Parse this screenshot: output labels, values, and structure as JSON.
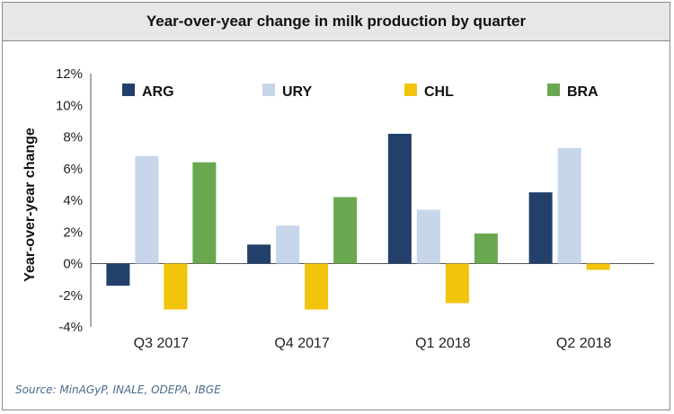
{
  "chart_data": {
    "type": "bar",
    "title": "Year-over-year change in milk production by quarter",
    "ylabel": "Year-over-year change",
    "xlabel": "",
    "categories": [
      "Q3 2017",
      "Q4 2017",
      "Q1 2018",
      "Q2 2018"
    ],
    "series": [
      {
        "name": "ARG",
        "color": "#23406b",
        "values": [
          -1.4,
          1.2,
          8.2,
          4.5
        ]
      },
      {
        "name": "URY",
        "color": "#c7d6ea",
        "values": [
          6.8,
          2.4,
          3.4,
          7.3
        ]
      },
      {
        "name": "CHL",
        "color": "#f2c40c",
        "values": [
          -2.9,
          -2.9,
          -2.5,
          -0.4
        ]
      },
      {
        "name": "BRA",
        "color": "#6aa84f",
        "values": [
          6.4,
          4.2,
          1.9,
          null
        ]
      }
    ],
    "ylim": [
      -4,
      12
    ],
    "yticks": [
      -4,
      -2,
      0,
      2,
      4,
      6,
      8,
      10,
      12
    ],
    "ytick_labels": [
      "-4%",
      "-2%",
      "0%",
      "2%",
      "4%",
      "6%",
      "8%",
      "10%",
      "12%"
    ],
    "legend_position": "top",
    "grid": false
  },
  "source_text": "Source: MinAGyP, INALE, ODEPA, IBGE"
}
